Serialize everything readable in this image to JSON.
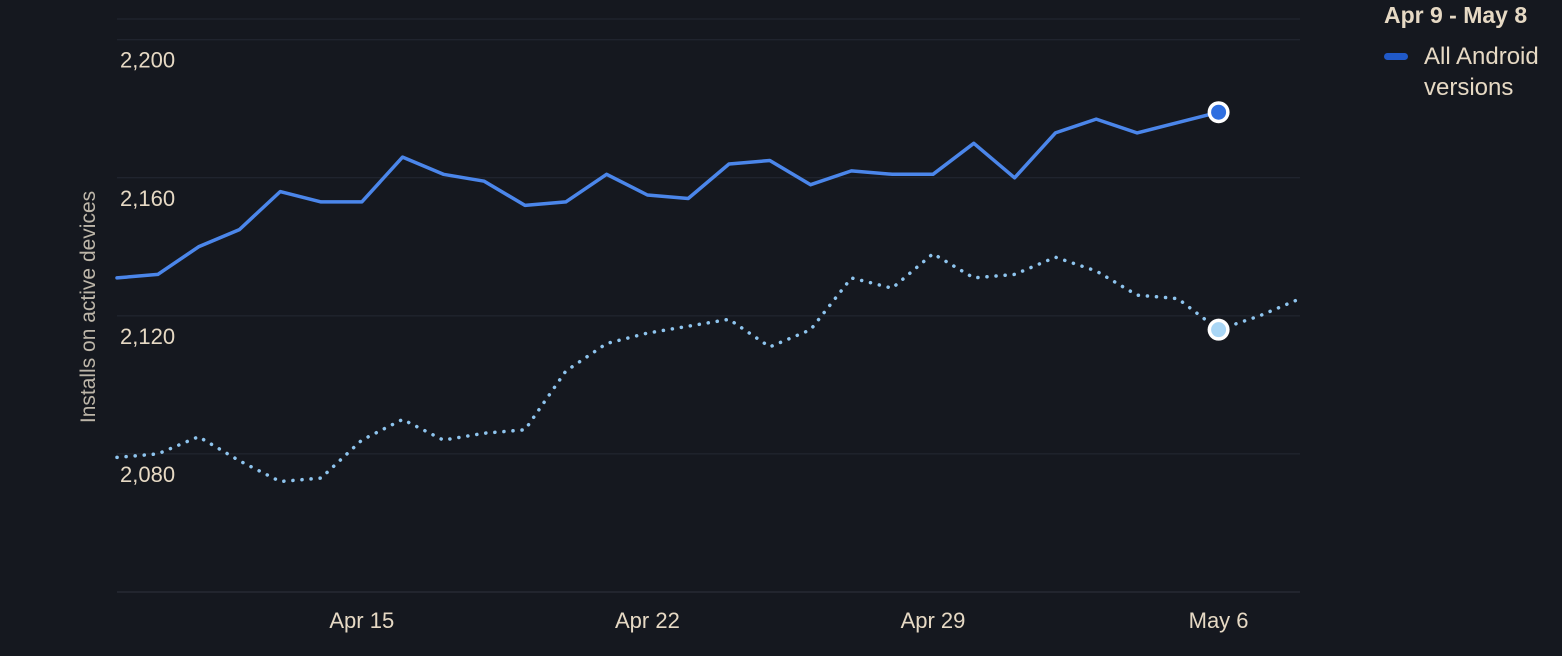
{
  "chart_data": {
    "type": "line",
    "ylabel": "Installs on active devices",
    "ylim": [
      2040,
      2206
    ],
    "y_ticks": [
      2080,
      2120,
      2160,
      2200
    ],
    "y_tick_labels": [
      "2,080",
      "2,120",
      "2,160",
      "2,200"
    ],
    "x_ticks": [
      6,
      13,
      20,
      27
    ],
    "x_tick_labels": [
      "Apr 15",
      "Apr 22",
      "Apr 29",
      "May 6"
    ],
    "legend": {
      "title": "Apr 9 - May 8",
      "items": [
        {
          "label": "All Android versions",
          "color": "#2059c8"
        }
      ]
    },
    "grid": true,
    "series": [
      {
        "name": "All Android versions",
        "style": "solid",
        "color": "#4b86ea",
        "x": [
          0,
          1,
          2,
          3,
          4,
          5,
          6,
          7,
          8,
          9,
          10,
          11,
          12,
          13,
          14,
          15,
          16,
          17,
          18,
          19,
          20,
          21,
          22,
          23,
          24,
          25,
          26,
          27
        ],
        "values": [
          2131,
          2132,
          2140,
          2145,
          2156,
          2153,
          2153,
          2166,
          2161,
          2159,
          2152,
          2153,
          2161,
          2155,
          2154,
          2164,
          2165,
          2158,
          2162,
          2161,
          2161,
          2170,
          2160,
          2173,
          2177,
          2173,
          2176,
          2179
        ],
        "highlight_index": 27
      },
      {
        "style": "dotted",
        "color": "#8ec4ee",
        "x": [
          0,
          1,
          2,
          3,
          4,
          5,
          6,
          7,
          8,
          9,
          10,
          11,
          12,
          13,
          14,
          15,
          16,
          17,
          18,
          19,
          20,
          21,
          22,
          23,
          24,
          25,
          26,
          27,
          28,
          29
        ],
        "values": [
          2079,
          2080,
          2085,
          2078,
          2072,
          2073,
          2084,
          2090,
          2084,
          2086,
          2087,
          2104,
          2112,
          2115,
          2117,
          2119,
          2111,
          2116,
          2131,
          2128,
          2138,
          2131,
          2132,
          2137,
          2133,
          2126,
          2125,
          2116,
          2120,
          2125
        ],
        "highlight_index": 27
      }
    ]
  }
}
